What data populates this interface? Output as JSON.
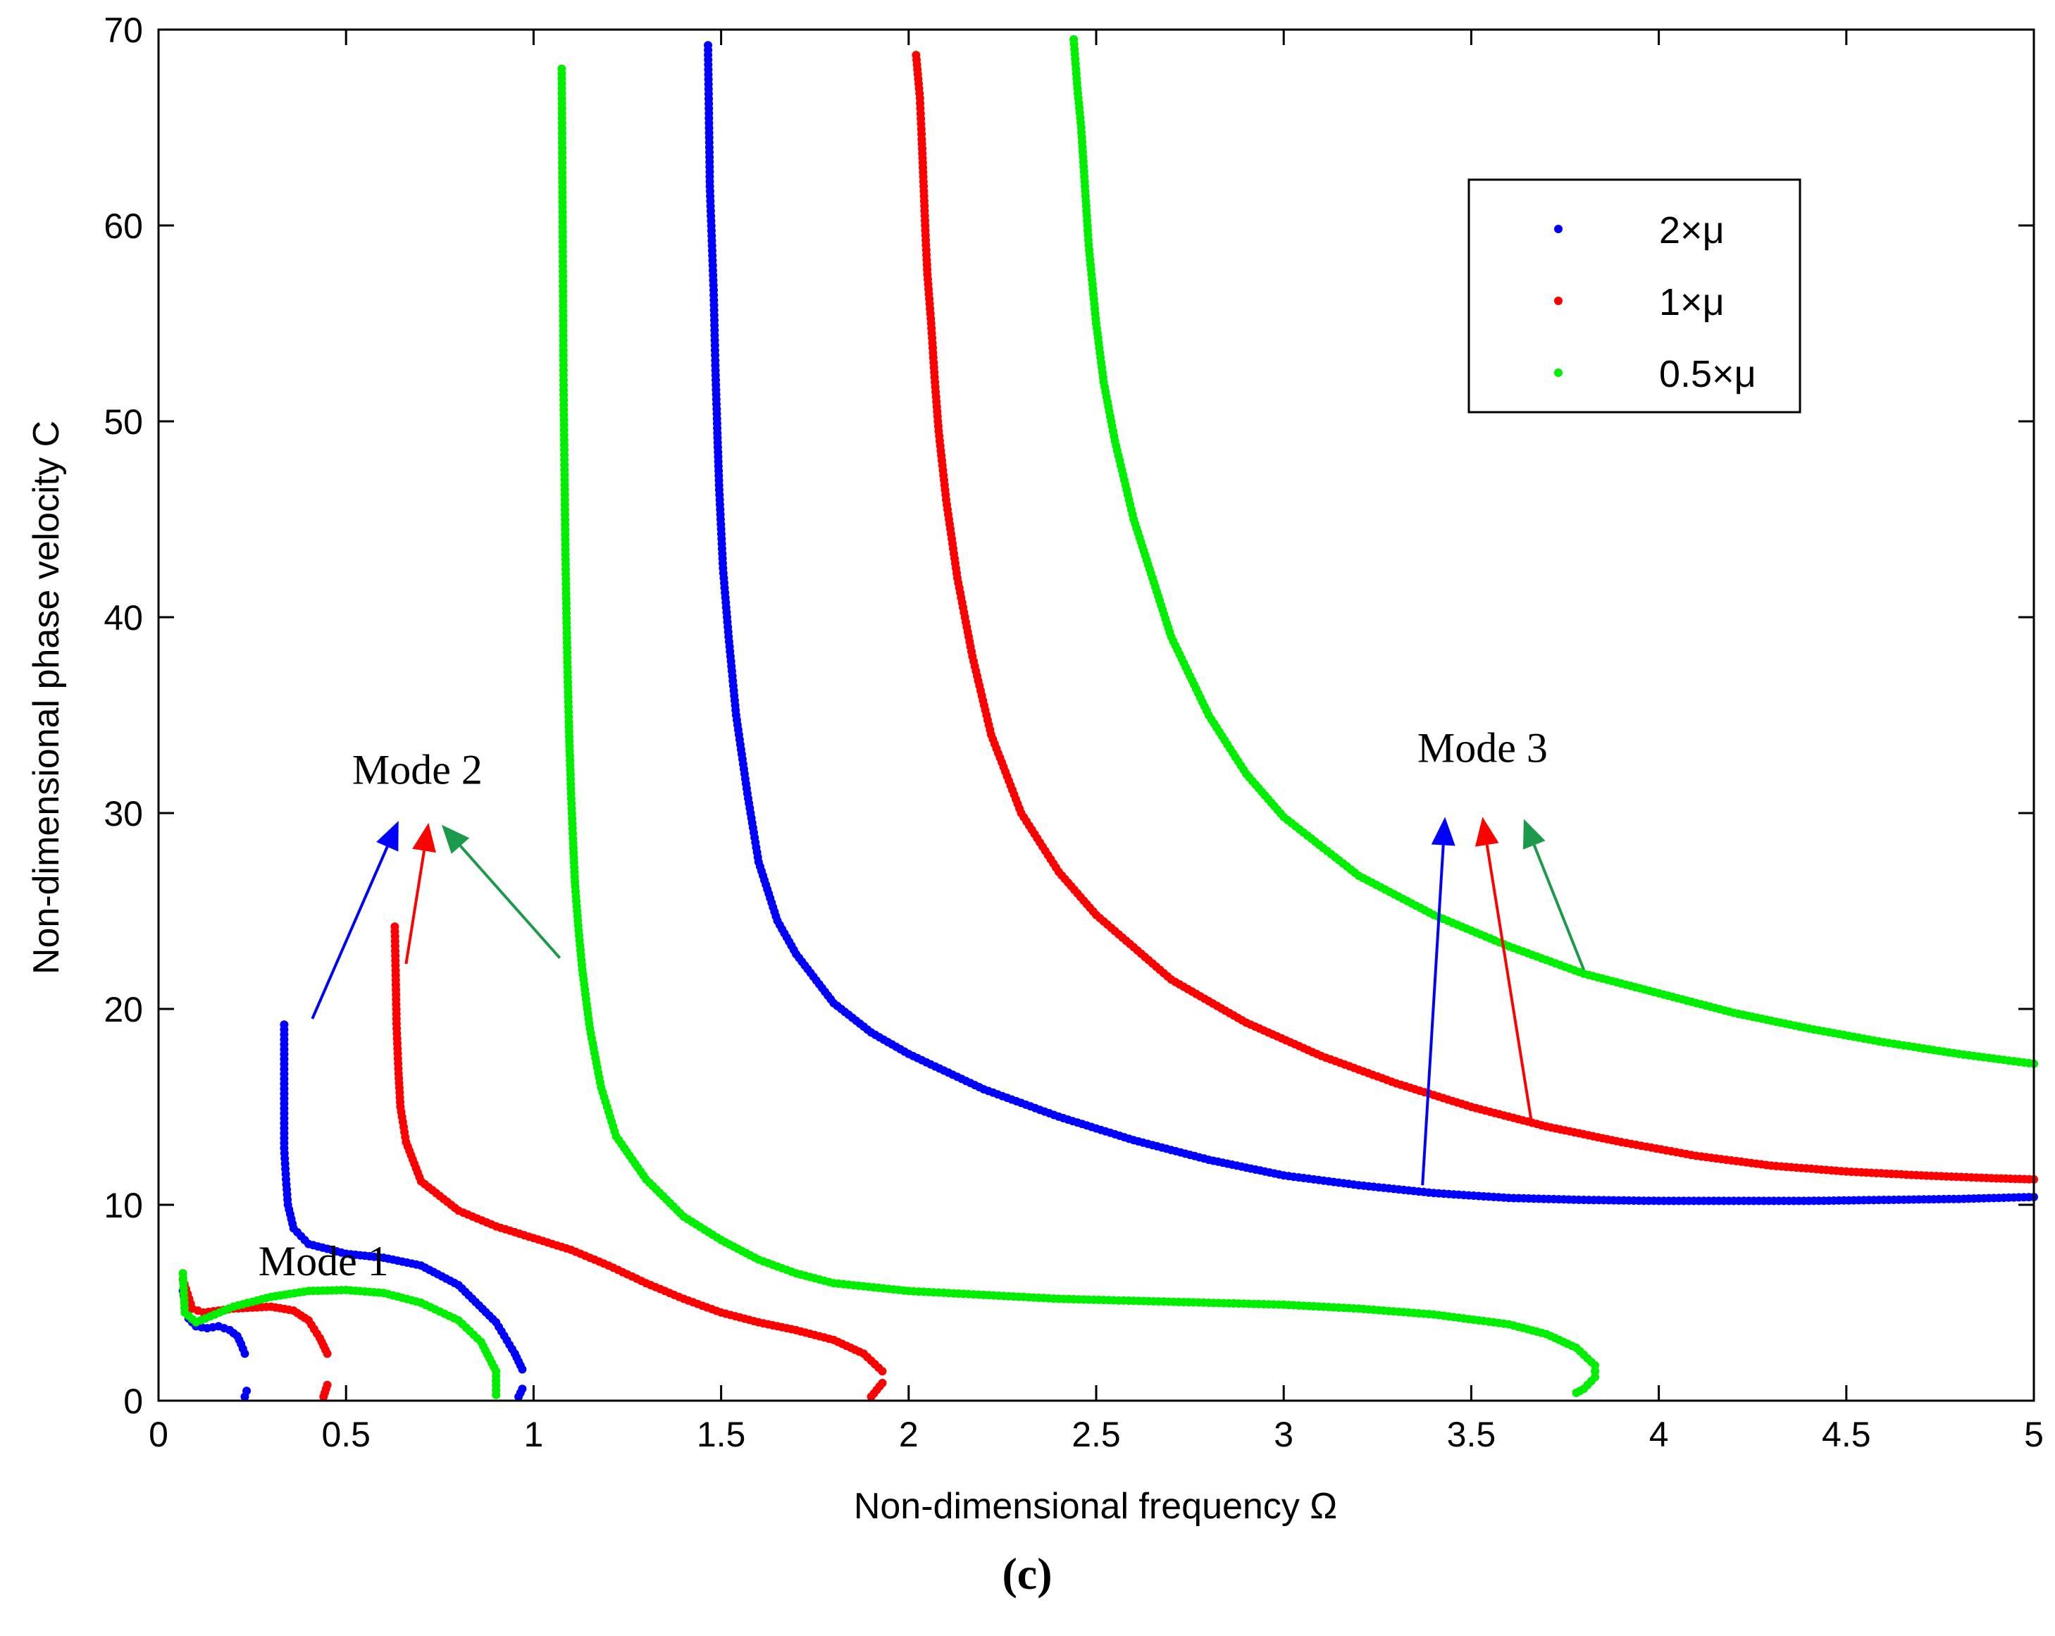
{
  "chart_data": {
    "type": "scatter",
    "title": "",
    "xlabel": "Non-dimensional frequency Ω",
    "ylabel": "Non-dimensional phase velocity C",
    "xlim": [
      0,
      5
    ],
    "ylim": [
      0,
      70
    ],
    "xticks": [
      0,
      0.5,
      1,
      1.5,
      2,
      2.5,
      3,
      3.5,
      4,
      4.5,
      5
    ],
    "yticks": [
      0,
      10,
      20,
      30,
      40,
      50,
      60,
      70
    ],
    "xtick_labels": [
      "0",
      "0.5",
      "1",
      "1.5",
      "2",
      "2.5",
      "3",
      "3.5",
      "4",
      "4.5",
      "5"
    ],
    "ytick_labels": [
      "0",
      "10",
      "20",
      "30",
      "40",
      "50",
      "60",
      "70"
    ],
    "grid": false,
    "legend_position": "top-right",
    "panel_label": "(c)",
    "series": [
      {
        "name": "2×μ",
        "color": "#0000ff",
        "modes": [
          {
            "mode": 1,
            "points": [
              [
                0.065,
                5.6
              ],
              [
                0.08,
                4.2
              ],
              [
                0.1,
                3.8
              ],
              [
                0.13,
                3.7
              ],
              [
                0.16,
                3.8
              ],
              [
                0.19,
                3.6
              ],
              [
                0.21,
                3.3
              ],
              [
                0.22,
                2.9
              ],
              [
                0.23,
                2.4
              ]
            ]
          },
          {
            "mode": 1,
            "points": [
              [
                0.23,
                0.2
              ],
              [
                0.235,
                0.5
              ]
            ]
          },
          {
            "mode": 2,
            "points": [
              [
                0.335,
                19.2
              ],
              [
                0.335,
                12.9
              ],
              [
                0.34,
                11.3
              ],
              [
                0.345,
                10.0
              ],
              [
                0.36,
                8.8
              ],
              [
                0.4,
                8.0
              ],
              [
                0.5,
                7.5
              ],
              [
                0.6,
                7.3
              ],
              [
                0.7,
                6.9
              ],
              [
                0.8,
                5.9
              ],
              [
                0.9,
                4.0
              ],
              [
                0.95,
                2.4
              ],
              [
                0.97,
                1.6
              ]
            ]
          },
          {
            "mode": 2,
            "points": [
              [
                0.96,
                0.2
              ],
              [
                0.97,
                0.6
              ]
            ]
          },
          {
            "mode": 3,
            "points": [
              [
                1.465,
                69.2
              ],
              [
                1.47,
                62
              ],
              [
                1.48,
                56.7
              ],
              [
                1.485,
                52.6
              ],
              [
                1.49,
                49.4
              ],
              [
                1.495,
                46.5
              ],
              [
                1.5,
                44.5
              ],
              [
                1.505,
                42.5
              ],
              [
                1.52,
                39
              ],
              [
                1.54,
                35
              ],
              [
                1.57,
                31
              ],
              [
                1.6,
                27.5
              ],
              [
                1.65,
                24.5
              ],
              [
                1.7,
                22.8
              ],
              [
                1.8,
                20.3
              ],
              [
                1.9,
                18.8
              ],
              [
                2.0,
                17.7
              ],
              [
                2.2,
                15.9
              ],
              [
                2.4,
                14.5
              ],
              [
                2.6,
                13.3
              ],
              [
                2.8,
                12.3
              ],
              [
                3.0,
                11.5
              ],
              [
                3.2,
                11.0
              ],
              [
                3.4,
                10.6
              ],
              [
                3.6,
                10.35
              ],
              [
                3.8,
                10.25
              ],
              [
                4.0,
                10.2
              ],
              [
                4.2,
                10.2
              ],
              [
                4.4,
                10.2
              ],
              [
                4.6,
                10.25
              ],
              [
                4.8,
                10.3
              ],
              [
                5.0,
                10.4
              ]
            ]
          }
        ]
      },
      {
        "name": "1×μ",
        "color": "#ff0000",
        "modes": [
          {
            "mode": 1,
            "points": [
              [
                0.065,
                6.2
              ],
              [
                0.09,
                4.7
              ],
              [
                0.12,
                4.5
              ],
              [
                0.2,
                4.7
              ],
              [
                0.3,
                4.8
              ],
              [
                0.36,
                4.6
              ],
              [
                0.4,
                4.1
              ],
              [
                0.43,
                3.2
              ],
              [
                0.45,
                2.4
              ]
            ]
          },
          {
            "mode": 1,
            "points": [
              [
                0.44,
                0.2
              ],
              [
                0.45,
                0.8
              ]
            ]
          },
          {
            "mode": 2,
            "points": [
              [
                0.63,
                24.2
              ],
              [
                0.635,
                19
              ],
              [
                0.64,
                16.7
              ],
              [
                0.645,
                15
              ],
              [
                0.66,
                13.2
              ],
              [
                0.7,
                11.2
              ],
              [
                0.8,
                9.7
              ],
              [
                0.9,
                8.9
              ],
              [
                1.0,
                8.3
              ],
              [
                1.1,
                7.7
              ],
              [
                1.2,
                6.9
              ],
              [
                1.3,
                6.0
              ],
              [
                1.4,
                5.2
              ],
              [
                1.5,
                4.5
              ],
              [
                1.6,
                4.0
              ],
              [
                1.7,
                3.6
              ],
              [
                1.8,
                3.1
              ],
              [
                1.88,
                2.4
              ],
              [
                1.93,
                1.5
              ]
            ]
          },
          {
            "mode": 2,
            "points": [
              [
                1.9,
                0.2
              ],
              [
                1.93,
                0.9
              ]
            ]
          },
          {
            "mode": 3,
            "points": [
              [
                2.02,
                68.7
              ],
              [
                2.03,
                66.5
              ],
              [
                2.035,
                64.4
              ],
              [
                2.04,
                62
              ],
              [
                2.045,
                59.5
              ],
              [
                2.05,
                57.5
              ],
              [
                2.06,
                55
              ],
              [
                2.07,
                52
              ],
              [
                2.08,
                49.5
              ],
              [
                2.1,
                46
              ],
              [
                2.13,
                42
              ],
              [
                2.17,
                38
              ],
              [
                2.22,
                34
              ],
              [
                2.3,
                30
              ],
              [
                2.4,
                27
              ],
              [
                2.5,
                24.8
              ],
              [
                2.7,
                21.5
              ],
              [
                2.9,
                19.3
              ],
              [
                3.1,
                17.6
              ],
              [
                3.3,
                16.2
              ],
              [
                3.5,
                15.0
              ],
              [
                3.7,
                14.0
              ],
              [
                3.9,
                13.2
              ],
              [
                4.1,
                12.5
              ],
              [
                4.3,
                12.0
              ],
              [
                4.5,
                11.7
              ],
              [
                4.7,
                11.5
              ],
              [
                4.9,
                11.35
              ],
              [
                5.0,
                11.3
              ]
            ]
          }
        ]
      },
      {
        "name": "0.5×μ",
        "color": "#00ee00",
        "modes": [
          {
            "mode": 1,
            "points": [
              [
                0.065,
                6.5
              ],
              [
                0.07,
                4.5
              ],
              [
                0.1,
                4.0
              ],
              [
                0.2,
                4.8
              ],
              [
                0.3,
                5.3
              ],
              [
                0.4,
                5.6
              ],
              [
                0.5,
                5.65
              ],
              [
                0.6,
                5.5
              ],
              [
                0.7,
                5.0
              ],
              [
                0.8,
                4.1
              ],
              [
                0.86,
                3.0
              ],
              [
                0.9,
                1.5
              ],
              [
                0.9,
                0.3
              ]
            ]
          },
          {
            "mode": 2,
            "points": [
              [
                1.075,
                68
              ],
              [
                1.08,
                51.6
              ],
              [
                1.085,
                43.2
              ],
              [
                1.09,
                37.7
              ],
              [
                1.095,
                33.9
              ],
              [
                1.1,
                31
              ],
              [
                1.105,
                28.7
              ],
              [
                1.11,
                26.5
              ],
              [
                1.12,
                24
              ],
              [
                1.13,
                22
              ],
              [
                1.15,
                19
              ],
              [
                1.18,
                16
              ],
              [
                1.22,
                13.5
              ],
              [
                1.3,
                11.3
              ],
              [
                1.4,
                9.4
              ],
              [
                1.5,
                8.2
              ],
              [
                1.6,
                7.2
              ],
              [
                1.7,
                6.5
              ],
              [
                1.8,
                6.0
              ],
              [
                2.0,
                5.6
              ],
              [
                2.2,
                5.4
              ],
              [
                2.4,
                5.2
              ],
              [
                2.6,
                5.1
              ],
              [
                2.8,
                5.0
              ],
              [
                3.0,
                4.9
              ],
              [
                3.2,
                4.7
              ],
              [
                3.4,
                4.4
              ],
              [
                3.6,
                3.9
              ],
              [
                3.7,
                3.4
              ],
              [
                3.78,
                2.7
              ],
              [
                3.83,
                1.8
              ],
              [
                3.83,
                1.2
              ],
              [
                3.8,
                0.6
              ],
              [
                3.78,
                0.4
              ]
            ]
          },
          {
            "mode": 3,
            "points": [
              [
                2.44,
                69.5
              ],
              [
                2.45,
                67
              ],
              [
                2.46,
                65
              ],
              [
                2.47,
                62
              ],
              [
                2.48,
                59
              ],
              [
                2.5,
                55
              ],
              [
                2.52,
                52
              ],
              [
                2.55,
                49
              ],
              [
                2.6,
                45
              ],
              [
                2.65,
                42
              ],
              [
                2.7,
                39
              ],
              [
                2.8,
                35
              ],
              [
                2.9,
                32
              ],
              [
                3.0,
                29.8
              ],
              [
                3.2,
                26.8
              ],
              [
                3.4,
                24.8
              ],
              [
                3.6,
                23.2
              ],
              [
                3.8,
                21.8
              ],
              [
                4.0,
                20.8
              ],
              [
                4.2,
                19.8
              ],
              [
                4.4,
                19.0
              ],
              [
                4.6,
                18.3
              ],
              [
                4.8,
                17.7
              ],
              [
                5.0,
                17.2
              ]
            ]
          }
        ]
      }
    ],
    "annotations": [
      {
        "text": "Mode 1",
        "x": 0.44,
        "y": 6.4
      },
      {
        "text": "Mode 2",
        "x": 0.69,
        "y": 31.5
      },
      {
        "text": "Mode 3",
        "x": 3.53,
        "y": 32.6
      }
    ],
    "arrows": [
      {
        "from": [
          0.41,
          19.5
        ],
        "to": [
          0.64,
          29.6
        ],
        "color": "#0000ff"
      },
      {
        "from": [
          0.66,
          22.3
        ],
        "to": [
          0.72,
          29.5
        ],
        "color": "#ff0000"
      },
      {
        "from": [
          1.07,
          22.6
        ],
        "to": [
          0.755,
          29.4
        ],
        "color": "#1a9a4a"
      },
      {
        "from": [
          3.37,
          11.0
        ],
        "to": [
          3.43,
          29.8
        ],
        "color": "#0000ff"
      },
      {
        "from": [
          3.66,
          14.3
        ],
        "to": [
          3.53,
          29.8
        ],
        "color": "#ff0000"
      },
      {
        "from": [
          3.8,
          22.0
        ],
        "to": [
          3.64,
          29.7
        ],
        "color": "#1a9a4a"
      }
    ]
  }
}
